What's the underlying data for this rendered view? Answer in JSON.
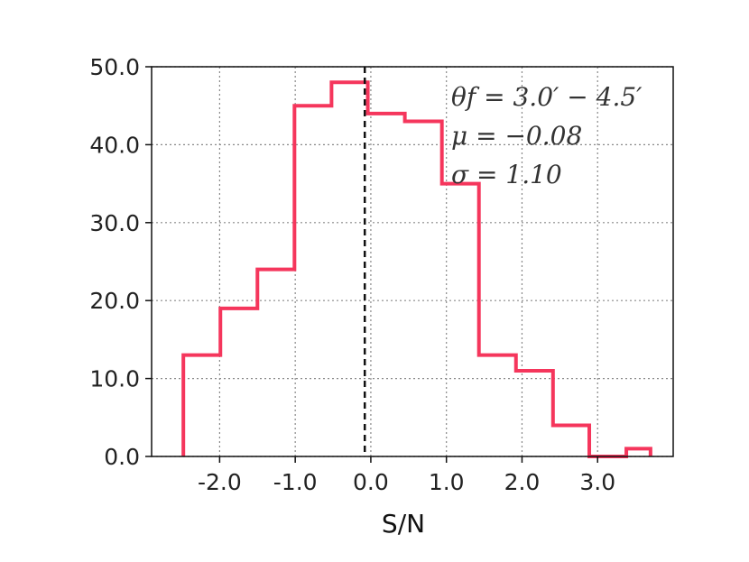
{
  "chart_data": {
    "type": "histogram",
    "title": "",
    "xlabel": "S/N",
    "ylabel": "",
    "xlim": [
      -2.9,
      4.0
    ],
    "ylim": [
      0,
      50
    ],
    "grid": true,
    "line_color": "#f5365c",
    "mean_line_color": "#111111",
    "mean_line_x": -0.08,
    "bin_edges": [
      -2.48,
      -1.99,
      -1.5,
      -1.01,
      -0.52,
      -0.04,
      0.45,
      0.94,
      1.43,
      1.92,
      2.41,
      2.89,
      3.38
    ],
    "counts": [
      13,
      19,
      24,
      45,
      48,
      44,
      43,
      35,
      13,
      11,
      4,
      0,
      1
    ],
    "last_edge": 3.7,
    "x_ticks": [
      -2,
      -1,
      0,
      1,
      2,
      3
    ],
    "x_tick_labels": [
      "-2.0",
      "-1.0",
      "0.0",
      "1.0",
      "2.0",
      "3.0"
    ],
    "y_ticks": [
      0,
      10,
      20,
      30,
      40,
      50
    ],
    "y_tick_labels": [
      "0.0",
      "10.0",
      "20.0",
      "30.0",
      "40.0",
      "50.0"
    ],
    "annotations": {
      "theta": "θf = 3.0′ − 4.5′",
      "mu": "μ = −0.08",
      "sigma": "σ = 1.10"
    }
  }
}
